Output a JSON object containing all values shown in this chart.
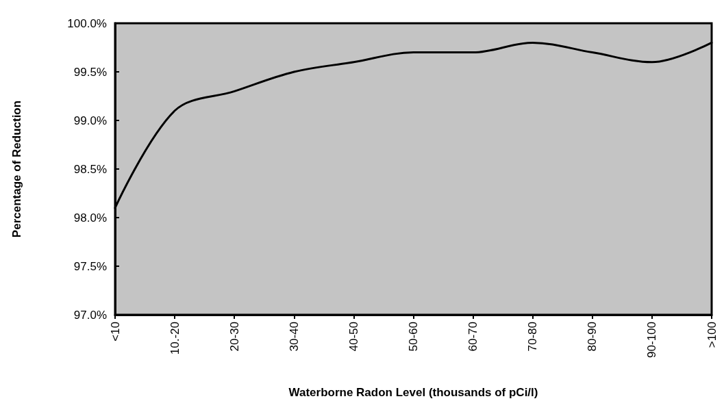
{
  "chart_data": {
    "type": "line",
    "xlabel": "Waterborne Radon Level (thousands of pCi/l)",
    "ylabel": "Percentage of Reduction",
    "categories": [
      "<10",
      "10.-20",
      "20-30",
      "30-40",
      "40-50",
      "50-60",
      "60-70",
      "70-80",
      "80-90",
      "90-100",
      ">100"
    ],
    "series": [
      {
        "color": "#000000",
        "values": [
          98.1,
          99.1,
          99.3,
          99.5,
          99.6,
          99.7,
          99.7,
          99.8,
          99.7,
          99.6,
          99.8
        ]
      }
    ],
    "ylim": [
      97,
      100
    ],
    "yticks": [
      {
        "value": 97,
        "label": "97.0%"
      },
      {
        "value": 97.5,
        "label": "97.5%"
      },
      {
        "value": 98,
        "label": "98.0%"
      },
      {
        "value": 98.5,
        "label": "98.5%"
      },
      {
        "value": 99,
        "label": "99.0%"
      },
      {
        "value": 99.5,
        "label": "99.5%"
      },
      {
        "value": 100,
        "label": "100.0%"
      }
    ],
    "grid": false,
    "marker": "none",
    "line_style": "solid"
  }
}
